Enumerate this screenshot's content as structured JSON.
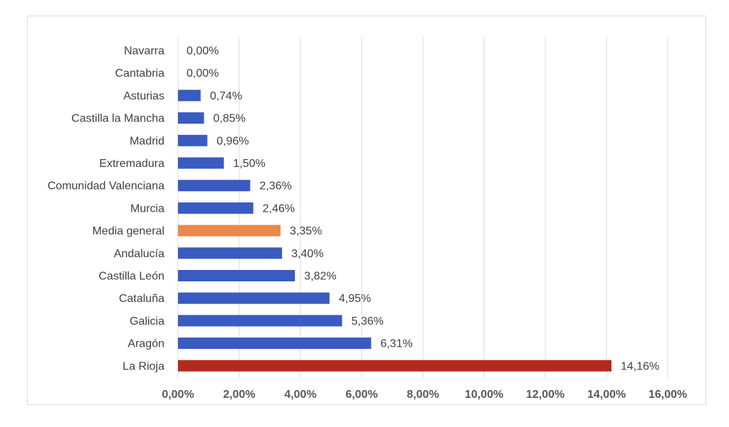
{
  "chart_data": {
    "type": "bar",
    "orientation": "horizontal",
    "title": "",
    "xlabel": "",
    "ylabel": "",
    "xlim": [
      0,
      16
    ],
    "x_ticks": [
      "0,00%",
      "2,00%",
      "4,00%",
      "6,00%",
      "8,00%",
      "10,00%",
      "12,00%",
      "14,00%",
      "16,00%"
    ],
    "grid": true,
    "categories": [
      "Navarra",
      "Cantabria",
      "Asturias",
      "Castilla la Mancha",
      "Madrid",
      "Extremadura",
      "Comunidad Valenciana",
      "Murcia",
      "Media general",
      "Andalucía",
      "Castilla León",
      "Cataluña",
      "Galicia",
      "Aragón",
      "La Rioja"
    ],
    "values": [
      0.0,
      0.0,
      0.74,
      0.85,
      0.96,
      1.5,
      2.36,
      2.46,
      3.35,
      3.4,
      3.82,
      4.95,
      5.36,
      6.31,
      14.16
    ],
    "value_labels": [
      "0,00%",
      "0,00%",
      "0,74%",
      "0,85%",
      "0,96%",
      "1,50%",
      "2,36%",
      "2,46%",
      "3,35%",
      "3,40%",
      "3,82%",
      "4,95%",
      "5,36%",
      "6,31%",
      "14,16%"
    ],
    "colors": {
      "default": "#3a5bbf",
      "highlight_average": "#e8894a",
      "highlight_max": "#b22a1e",
      "grid": "#d9d9d9"
    },
    "highlight_average_index": 8,
    "highlight_max_index": 14
  }
}
